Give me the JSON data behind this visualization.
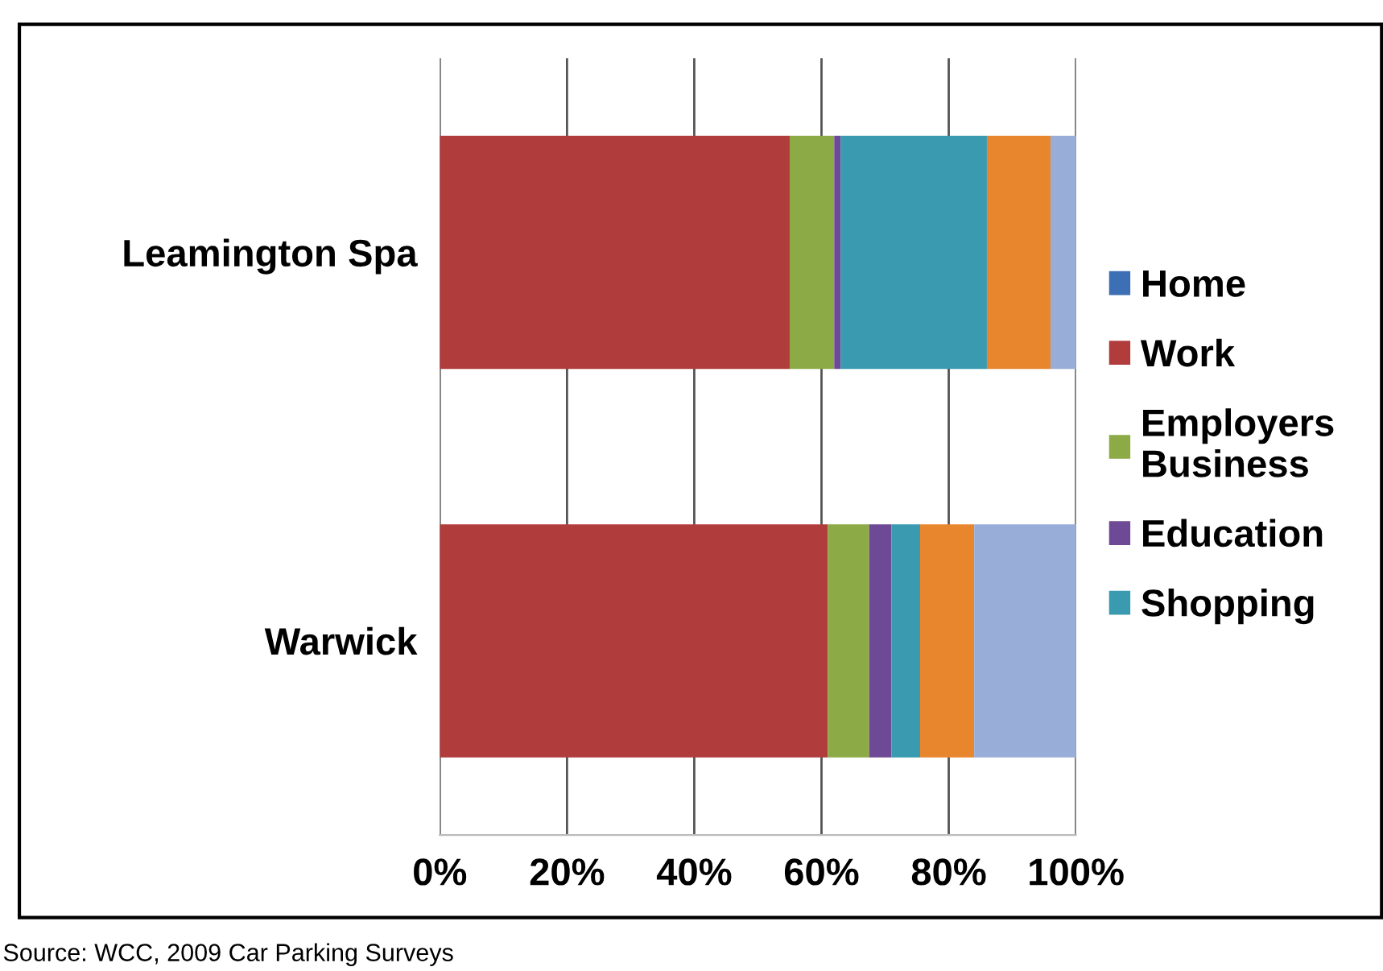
{
  "chart_data": {
    "type": "bar",
    "orientation": "horizontal",
    "stacked": true,
    "categories": [
      "Leamington Spa",
      "Warwick"
    ],
    "series": [
      {
        "name": "Home",
        "color": "#3c6fb4",
        "values": [
          0,
          0
        ]
      },
      {
        "name": "Work",
        "color": "#b03c3c",
        "values": [
          55,
          61
        ]
      },
      {
        "name": "Employers Business",
        "color": "#8cab46",
        "values": [
          7,
          6.5
        ]
      },
      {
        "name": "Education",
        "color": "#6e4a96",
        "values": [
          1,
          3.5
        ]
      },
      {
        "name": "Shopping",
        "color": "#3a9ab0",
        "values": [
          23,
          4.5
        ]
      },
      {
        "color": "#e8862e",
        "values": [
          10,
          8.5
        ]
      },
      {
        "color": "#98aed8",
        "values": [
          4,
          16
        ]
      }
    ],
    "xlim": [
      0,
      100
    ],
    "xticks": [
      {
        "value": 0,
        "label": "0%"
      },
      {
        "value": 20,
        "label": "20%"
      },
      {
        "value": 40,
        "label": "40%"
      },
      {
        "value": 60,
        "label": "60%"
      },
      {
        "value": 80,
        "label": "80%"
      },
      {
        "value": 100,
        "label": "100%"
      }
    ],
    "grid": "x",
    "legend": "right",
    "annotations": [
      "Source: WCC, 2009 Car Parking Surveys"
    ]
  }
}
